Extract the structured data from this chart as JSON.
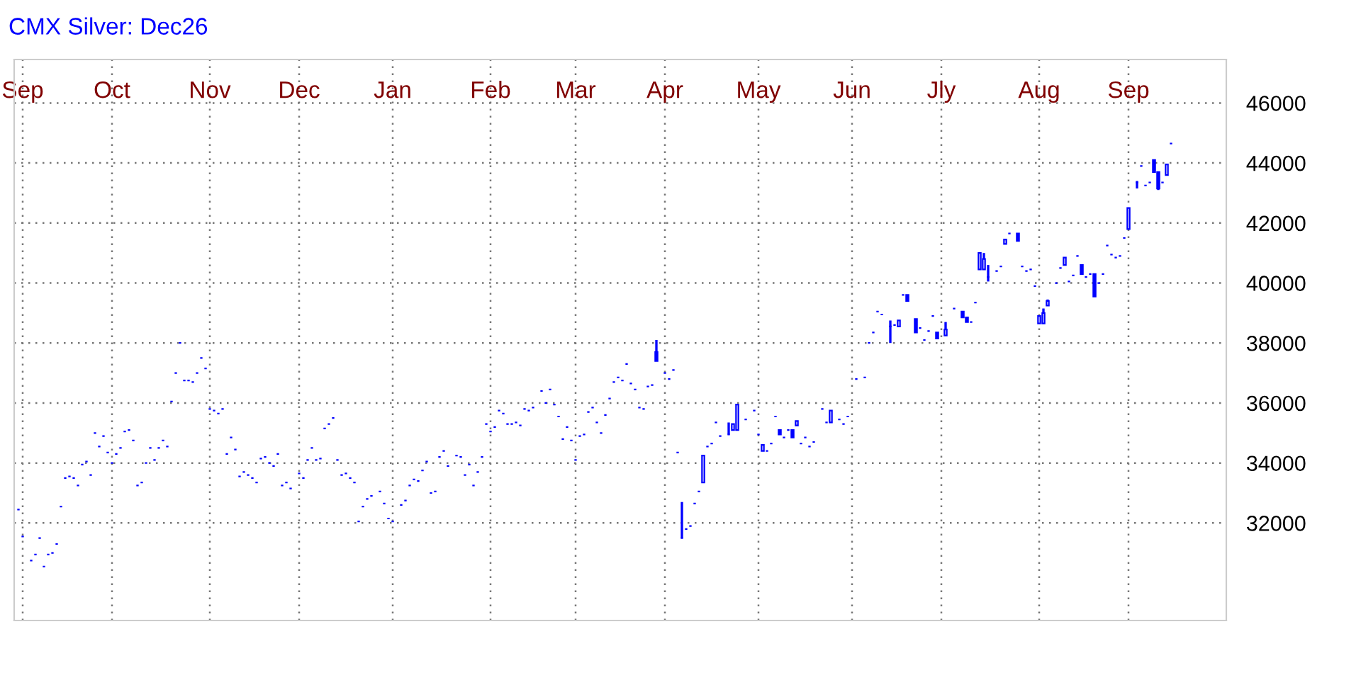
{
  "chart_data": {
    "type": "candlestick",
    "title": "CMX Silver: Dec26",
    "color": "#0000ff",
    "categories": [
      null,
      "Sep",
      null,
      null,
      null,
      null,
      null,
      null,
      null,
      null,
      null,
      null,
      null,
      null,
      null,
      null,
      null,
      null,
      null,
      null,
      null,
      null,
      "Oct",
      null,
      null,
      null,
      null,
      null,
      null,
      null,
      null,
      null,
      null,
      null,
      null,
      null,
      null,
      null,
      null,
      null,
      null,
      null,
      null,
      null,
      null,
      "Nov",
      null,
      null,
      null,
      null,
      null,
      null,
      null,
      null,
      null,
      null,
      null,
      null,
      null,
      null,
      null,
      null,
      null,
      null,
      null,
      null,
      "Dec",
      null,
      null,
      null,
      null,
      null,
      null,
      null,
      null,
      null,
      null,
      null,
      null,
      null,
      null,
      null,
      null,
      null,
      null,
      null,
      null,
      null,
      "Jan",
      null,
      null,
      null,
      null,
      null,
      null,
      null,
      null,
      null,
      null,
      null,
      null,
      null,
      null,
      null,
      null,
      null,
      null,
      null,
      null,
      null,
      null,
      "Feb",
      null,
      null,
      null,
      null,
      null,
      null,
      null,
      null,
      null,
      null,
      null,
      null,
      null,
      null,
      null,
      null,
      null,
      null,
      null,
      "Mar",
      null,
      null,
      null,
      null,
      null,
      null,
      null,
      null,
      null,
      null,
      null,
      null,
      null,
      null,
      null,
      null,
      null,
      null,
      null,
      null,
      "Apr",
      null,
      null,
      null,
      null,
      null,
      null,
      null,
      null,
      null,
      null,
      null,
      null,
      null,
      null,
      null,
      null,
      null,
      null,
      null,
      null,
      null,
      "May",
      null,
      null,
      null,
      null,
      null,
      null,
      null,
      null,
      null,
      null,
      null,
      null,
      null,
      null,
      null,
      null,
      null,
      null,
      null,
      null,
      null,
      "Jun",
      null,
      null,
      null,
      null,
      null,
      null,
      null,
      null,
      null,
      null,
      null,
      null,
      null,
      null,
      null,
      null,
      null,
      null,
      null,
      null,
      "Jly",
      null,
      null,
      null,
      null,
      null,
      null,
      null,
      null,
      null,
      null,
      null,
      null,
      null,
      null,
      null,
      null,
      null,
      null,
      null,
      null,
      null,
      null,
      "Aug",
      null,
      null,
      null,
      null,
      null,
      null,
      null,
      null,
      null,
      null,
      null,
      null,
      null,
      null,
      null,
      null,
      null,
      null,
      null,
      null,
      "Sep",
      null,
      null,
      null,
      null,
      null,
      null,
      null,
      null,
      null,
      null
    ],
    "ohlc": [
      [
        32450,
        32450,
        32450,
        32450
      ],
      [
        31550,
        31550,
        31550,
        31550
      ],
      null,
      [
        30750,
        30750,
        30750,
        30750
      ],
      [
        30950,
        30950,
        30950,
        30950
      ],
      [
        31500,
        31500,
        31500,
        31500
      ],
      [
        30550,
        30550,
        30550,
        30550
      ],
      [
        30950,
        30950,
        30950,
        30950
      ],
      [
        31000,
        31000,
        31000,
        31000
      ],
      [
        31300,
        31300,
        31300,
        31300
      ],
      [
        32550,
        32550,
        32550,
        32550
      ],
      [
        33500,
        33500,
        33500,
        33500
      ],
      [
        33550,
        33550,
        33550,
        33550
      ],
      [
        33500,
        33500,
        33500,
        33500
      ],
      [
        33250,
        33250,
        33250,
        33250
      ],
      [
        33950,
        33950,
        33950,
        33950
      ],
      [
        34050,
        34050,
        34050,
        34050
      ],
      [
        33600,
        33600,
        33600,
        33600
      ],
      [
        35000,
        35000,
        35000,
        35000
      ],
      [
        34550,
        34550,
        34550,
        34550
      ],
      [
        34900,
        34900,
        34900,
        34900
      ],
      [
        34350,
        34350,
        34350,
        34350
      ],
      [
        34000,
        34000,
        34000,
        34000
      ],
      [
        34300,
        34300,
        34300,
        34300
      ],
      [
        34500,
        34500,
        34500,
        34500
      ],
      [
        35050,
        35050,
        35050,
        35050
      ],
      [
        35100,
        35100,
        35100,
        35100
      ],
      [
        34750,
        34750,
        34750,
        34750
      ],
      [
        33250,
        33250,
        33250,
        33250
      ],
      [
        33350,
        33350,
        33350,
        33350
      ],
      [
        34000,
        34000,
        34000,
        34000
      ],
      [
        34500,
        34500,
        34500,
        34500
      ],
      [
        34100,
        34100,
        34100,
        34100
      ],
      [
        34500,
        34500,
        34500,
        34500
      ],
      [
        34750,
        34750,
        34750,
        34750
      ],
      [
        34550,
        34550,
        34550,
        34550
      ],
      [
        36050,
        36050,
        36050,
        36050
      ],
      [
        37000,
        37000,
        37000,
        37000
      ],
      [
        38000,
        38000,
        38000,
        38000
      ],
      [
        36750,
        36750,
        36750,
        36750
      ],
      [
        36750,
        36750,
        36750,
        36750
      ],
      [
        36700,
        36700,
        36700,
        36700
      ],
      [
        37000,
        37000,
        37000,
        37000
      ],
      [
        37500,
        37500,
        37500,
        37500
      ],
      [
        37150,
        37150,
        37150,
        37150
      ],
      [
        35800,
        35800,
        35800,
        35800
      ],
      [
        35750,
        35750,
        35750,
        35750
      ],
      [
        35650,
        35650,
        35650,
        35650
      ],
      [
        35800,
        35800,
        35800,
        35800
      ],
      [
        34300,
        34300,
        34300,
        34300
      ],
      [
        34850,
        34850,
        34850,
        34850
      ],
      [
        34450,
        34450,
        34450,
        34450
      ],
      [
        33550,
        33550,
        33550,
        33550
      ],
      [
        33700,
        33700,
        33700,
        33700
      ],
      [
        33600,
        33600,
        33600,
        33600
      ],
      [
        33500,
        33500,
        33500,
        33500
      ],
      [
        33350,
        33350,
        33350,
        33350
      ],
      [
        34150,
        34150,
        34150,
        34150
      ],
      [
        34200,
        34200,
        34200,
        34200
      ],
      [
        34000,
        34000,
        34000,
        34000
      ],
      [
        33900,
        33900,
        33900,
        33900
      ],
      [
        34300,
        34300,
        34300,
        34300
      ],
      [
        33250,
        33250,
        33250,
        33250
      ],
      [
        33350,
        33350,
        33350,
        33350
      ],
      [
        33150,
        33150,
        33150,
        33150
      ],
      null,
      [
        33650,
        33650,
        33650,
        33650
      ],
      [
        33500,
        33500,
        33500,
        33500
      ],
      [
        34100,
        34100,
        34100,
        34100
      ],
      [
        34500,
        34500,
        34500,
        34500
      ],
      [
        34100,
        34100,
        34100,
        34100
      ],
      [
        34150,
        34150,
        34150,
        34150
      ],
      [
        35150,
        35150,
        35150,
        35150
      ],
      [
        35300,
        35300,
        35300,
        35300
      ],
      [
        35500,
        35500,
        35500,
        35500
      ],
      [
        34100,
        34100,
        34100,
        34100
      ],
      [
        33600,
        33600,
        33600,
        33600
      ],
      [
        33650,
        33650,
        33650,
        33650
      ],
      [
        33500,
        33500,
        33500,
        33500
      ],
      [
        33350,
        33350,
        33350,
        33350
      ],
      [
        32050,
        32050,
        32050,
        32050
      ],
      [
        32550,
        32550,
        32550,
        32550
      ],
      [
        32800,
        32800,
        32800,
        32800
      ],
      [
        32900,
        32900,
        32900,
        32900
      ],
      null,
      [
        33050,
        33050,
        33050,
        33050
      ],
      [
        32650,
        32650,
        32650,
        32650
      ],
      [
        32150,
        32150,
        32150,
        32150
      ],
      [
        32050,
        32050,
        32050,
        32050
      ],
      null,
      [
        32600,
        32600,
        32600,
        32600
      ],
      [
        32750,
        32750,
        32750,
        32750
      ],
      [
        33250,
        33250,
        33250,
        33250
      ],
      [
        33450,
        33450,
        33450,
        33450
      ],
      [
        33400,
        33400,
        33400,
        33400
      ],
      [
        33750,
        33750,
        33750,
        33750
      ],
      [
        34050,
        34050,
        34050,
        34050
      ],
      [
        33000,
        33000,
        33000,
        33000
      ],
      [
        33050,
        33050,
        33050,
        33050
      ],
      [
        34200,
        34200,
        34200,
        34200
      ],
      [
        34400,
        34400,
        34400,
        34400
      ],
      [
        33900,
        33900,
        33900,
        33900
      ],
      null,
      [
        34250,
        34250,
        34250,
        34250
      ],
      [
        34200,
        34200,
        34200,
        34200
      ],
      [
        33600,
        33600,
        33600,
        33600
      ],
      [
        33950,
        33950,
        33950,
        33950
      ],
      [
        33250,
        33250,
        33250,
        33250
      ],
      [
        33700,
        33700,
        33700,
        33700
      ],
      [
        34200,
        34200,
        34200,
        34200
      ],
      [
        35300,
        35300,
        35300,
        35300
      ],
      [
        35050,
        35050,
        35050,
        35050
      ],
      [
        35200,
        35200,
        35200,
        35200
      ],
      [
        35750,
        35750,
        35750,
        35750
      ],
      [
        35650,
        35650,
        35650,
        35650
      ],
      [
        35300,
        35300,
        35300,
        35300
      ],
      [
        35300,
        35300,
        35300,
        35300
      ],
      [
        35350,
        35350,
        35350,
        35350
      ],
      [
        35250,
        35250,
        35250,
        35250
      ],
      [
        35800,
        35800,
        35800,
        35800
      ],
      [
        35750,
        35750,
        35750,
        35750
      ],
      [
        35850,
        35850,
        35850,
        35850
      ],
      null,
      [
        36400,
        36400,
        36400,
        36400
      ],
      [
        36000,
        36000,
        36000,
        36000
      ],
      [
        36450,
        36450,
        36450,
        36450
      ],
      [
        35950,
        35950,
        35950,
        35950
      ],
      [
        35550,
        35550,
        35550,
        35550
      ],
      [
        34800,
        34800,
        34800,
        34800
      ],
      [
        35200,
        35200,
        35200,
        35200
      ],
      [
        34750,
        34750,
        34750,
        34750
      ],
      [
        34100,
        34100,
        34100,
        34100
      ],
      [
        34900,
        34900,
        34900,
        34900
      ],
      [
        34950,
        34950,
        34950,
        34950
      ],
      [
        35700,
        35700,
        35700,
        35700
      ],
      [
        35850,
        35850,
        35850,
        35850
      ],
      [
        35350,
        35350,
        35350,
        35350
      ],
      [
        35000,
        35000,
        35000,
        35000
      ],
      [
        35600,
        35600,
        35600,
        35600
      ],
      [
        36150,
        36150,
        36150,
        36150
      ],
      [
        36700,
        36700,
        36700,
        36700
      ],
      [
        36850,
        36850,
        36850,
        36850
      ],
      [
        36750,
        36750,
        36750,
        36750
      ],
      [
        37300,
        37300,
        37300,
        37300
      ],
      [
        36650,
        36650,
        36650,
        36650
      ],
      [
        36450,
        36450,
        36450,
        36450
      ],
      [
        35850,
        35850,
        35850,
        35850
      ],
      [
        35800,
        35800,
        35800,
        35800
      ],
      [
        36550,
        36550,
        36550,
        36550
      ],
      [
        36600,
        36600,
        36600,
        36600
      ],
      [
        37700,
        38100,
        37400,
        37400
      ],
      null,
      [
        37000,
        37000,
        37000,
        37000
      ],
      [
        36800,
        36800,
        36800,
        36800
      ],
      [
        37100,
        37100,
        37100,
        37100
      ],
      [
        34350,
        34350,
        34350,
        34350
      ],
      [
        31500,
        32700,
        31500,
        31500
      ],
      [
        31800,
        31800,
        31800,
        31800
      ],
      [
        31900,
        31900,
        31900,
        31900
      ],
      [
        32650,
        32650,
        32650,
        32650
      ],
      [
        33050,
        33050,
        33050,
        33050
      ],
      [
        33350,
        34250,
        33350,
        34250
      ],
      [
        34550,
        34550,
        34550,
        34550
      ],
      [
        34650,
        34650,
        34650,
        34650
      ],
      [
        35350,
        35350,
        35350,
        35350
      ],
      [
        34900,
        34900,
        34900,
        34900
      ],
      null,
      [
        34950,
        35350,
        34950,
        34950
      ],
      [
        35100,
        35300,
        35100,
        35300
      ],
      [
        35100,
        35950,
        35100,
        35950
      ],
      null,
      [
        35450,
        35450,
        35450,
        35450
      ],
      null,
      [
        35750,
        35750,
        35750,
        35750
      ],
      [
        34950,
        34950,
        34950,
        34950
      ],
      [
        34400,
        34600,
        34400,
        34600
      ],
      [
        34400,
        34400,
        34400,
        34400
      ],
      [
        34650,
        34650,
        34650,
        34650
      ],
      [
        35550,
        35550,
        35550,
        35550
      ],
      [
        35100,
        35100,
        34950,
        34950
      ],
      [
        34850,
        34850,
        34850,
        34850
      ],
      [
        35100,
        35100,
        35100,
        35100
      ],
      [
        35100,
        35100,
        34850,
        34850
      ],
      [
        35250,
        35400,
        35250,
        35400
      ],
      [
        34650,
        34650,
        34650,
        34650
      ],
      [
        34850,
        34850,
        34850,
        34850
      ],
      [
        34550,
        34550,
        34550,
        34550
      ],
      [
        34700,
        34700,
        34700,
        34700
      ],
      null,
      [
        35800,
        35800,
        35800,
        35800
      ],
      [
        35350,
        35350,
        35350,
        35350
      ],
      [
        35350,
        35750,
        35350,
        35750
      ],
      null,
      [
        35450,
        35450,
        35450,
        35450
      ],
      [
        35300,
        35300,
        35300,
        35300
      ],
      [
        35550,
        35550,
        35550,
        35550
      ],
      null,
      [
        36800,
        36800,
        36800,
        36800
      ],
      null,
      [
        36850,
        36850,
        36850,
        36850
      ],
      [
        38000,
        38000,
        38000,
        38000
      ],
      [
        38350,
        38350,
        38350,
        38350
      ],
      [
        39050,
        39050,
        39050,
        39050
      ],
      [
        38950,
        38950,
        38950,
        38950
      ],
      null,
      [
        38550,
        38750,
        38000,
        38550
      ],
      [
        38600,
        38600,
        38600,
        38600
      ],
      [
        38550,
        38750,
        38550,
        38750
      ],
      [
        39600,
        39600,
        39600,
        39600
      ],
      [
        39600,
        39600,
        39400,
        39400
      ],
      null,
      [
        38800,
        38800,
        38350,
        38350
      ],
      [
        38500,
        38500,
        38500,
        38500
      ],
      [
        38100,
        38100,
        38100,
        38100
      ],
      [
        38400,
        38400,
        38400,
        38400
      ],
      [
        38900,
        38900,
        38900,
        38900
      ],
      [
        38350,
        38350,
        38150,
        38150
      ],
      null,
      [
        38250,
        38700,
        38250,
        38450
      ],
      null,
      [
        39150,
        39150,
        39150,
        39150
      ],
      null,
      [
        39050,
        39050,
        38850,
        38850
      ],
      [
        38850,
        38850,
        38700,
        38700
      ],
      [
        38700,
        38700,
        38700,
        38700
      ],
      [
        39350,
        39350,
        39350,
        39350
      ],
      [
        40450,
        41000,
        40450,
        41000
      ],
      [
        40450,
        41000,
        40450,
        40800
      ],
      [
        40200,
        40600,
        40050,
        40200
      ],
      null,
      [
        40400,
        40400,
        40400,
        40400
      ],
      [
        40550,
        40550,
        40550,
        40550
      ],
      [
        41300,
        41450,
        41300,
        41450
      ],
      [
        41650,
        41650,
        41650,
        41650
      ],
      null,
      [
        41650,
        41650,
        41400,
        41400
      ],
      [
        40550,
        40550,
        40550,
        40550
      ],
      [
        40400,
        40400,
        40400,
        40400
      ],
      [
        40450,
        40450,
        40450,
        40450
      ],
      [
        39900,
        39900,
        39900,
        39900
      ],
      [
        38650,
        38900,
        38650,
        38900
      ],
      [
        38650,
        39150,
        38650,
        39000
      ],
      [
        39250,
        39450,
        39250,
        39400
      ],
      null,
      [
        40000,
        40000,
        40000,
        40000
      ],
      [
        40500,
        40500,
        40500,
        40500
      ],
      [
        40600,
        40850,
        40600,
        40850
      ],
      [
        40050,
        40050,
        40050,
        40050
      ],
      [
        40250,
        40250,
        40250,
        40250
      ],
      [
        40900,
        40900,
        40900,
        40900
      ],
      [
        40600,
        40600,
        40300,
        40300
      ],
      [
        40200,
        40200,
        40200,
        40200
      ],
      [
        40300,
        40300,
        40300,
        40300
      ],
      [
        40300,
        40300,
        39550,
        39550
      ],
      [
        40000,
        40000,
        40000,
        40000
      ],
      [
        40300,
        40300,
        40300,
        40300
      ],
      [
        41250,
        41250,
        41250,
        41250
      ],
      [
        40950,
        40950,
        40950,
        40950
      ],
      [
        40850,
        40850,
        40850,
        40850
      ],
      [
        40900,
        40900,
        40900,
        40900
      ],
      [
        41500,
        41500,
        41500,
        41500
      ],
      [
        41800,
        42500,
        41800,
        42500
      ],
      null,
      [
        43350,
        43400,
        43150,
        43350
      ],
      [
        43900,
        43900,
        43900,
        43900
      ],
      [
        43250,
        43250,
        43250,
        43250
      ],
      [
        43350,
        43350,
        43350,
        43350
      ],
      [
        44100,
        44100,
        43700,
        43700
      ],
      [
        43700,
        43700,
        43100,
        43150
      ],
      [
        43350,
        43350,
        43350,
        43350
      ],
      [
        43600,
        43950,
        43600,
        43950
      ],
      [
        44650,
        44650,
        44650,
        44650
      ]
    ],
    "ylim": [
      28750,
      47450
    ],
    "yticks": [
      32000,
      34000,
      36000,
      38000,
      40000,
      42000,
      44000,
      46000
    ],
    "grid": true
  }
}
